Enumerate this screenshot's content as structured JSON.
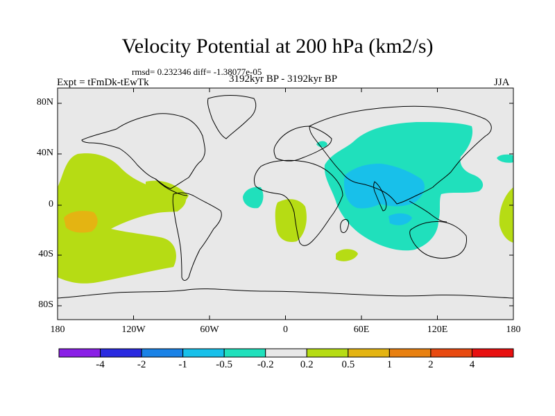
{
  "title": "Velocity Potential at 200 hPa (km2/s)",
  "stats_line": "rmsd= 0.232346 diff= -1.38077e-05",
  "experiment": "Expt = tFmDk-tEwTk",
  "period": "3192kyr BP - 3192kyr BP",
  "season": "JJA",
  "lat_labels": [
    "80N",
    "40N",
    "0",
    "40S",
    "80S"
  ],
  "lon_labels": [
    "180",
    "120W",
    "60W",
    "0",
    "60E",
    "120E",
    "180"
  ],
  "colorbar": {
    "colors": [
      "#8a1fe6",
      "#2a2ae0",
      "#1a82e6",
      "#18c0ea",
      "#20e0bc",
      "#e8e8e8",
      "#b6dc14",
      "#e4b412",
      "#e88010",
      "#e84a10",
      "#e81010"
    ],
    "labels": [
      "-4",
      "-2",
      "-1",
      "-0.5",
      "-0.2",
      "0.2",
      "0.5",
      "1",
      "2",
      "4"
    ]
  },
  "map_colors": {
    "background": "#e8e8e8",
    "positive_light": "#b6dc14",
    "positive_strong": "#e4b412",
    "negative_light": "#20e0bc",
    "negative_strong": "#18c0ea"
  }
}
